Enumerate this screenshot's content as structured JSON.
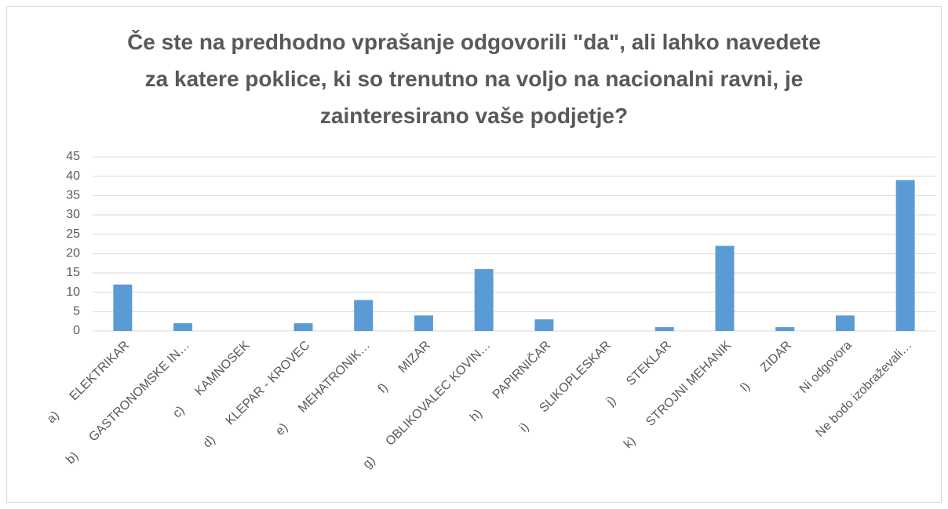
{
  "chart_data": {
    "type": "bar",
    "title": "Če ste na predhodno vprašanje odgovorili \"da\", ali lahko navedete za katere poklice, ki so trenutno na voljo na nacionalni ravni, je zainteresirano vaše podjetje?",
    "categories": [
      "a)      ELEKTRIKAR",
      "b)      GASTRONOMSKE IN…",
      "c)      KAMNOSEK",
      "d)      KLEPAR - KROVEC",
      "e)      MEHATRONIK…",
      "f)      MIZAR",
      "g)      OBLIKOVALEC KOVIN…",
      "h)      PAPIRNIČAR",
      "i)      SLIKOPLESKAR",
      "j)      STEKLAR",
      "k)      STROJNI MEHANIK",
      "l)      ZIDAR",
      "Ni odgovora",
      "Ne bodo izobraževali…"
    ],
    "values": [
      12,
      2,
      0,
      2,
      8,
      4,
      16,
      3,
      0,
      1,
      22,
      1,
      4,
      39
    ],
    "color": "#5b9bd5",
    "ylim": [
      0,
      45
    ],
    "yticks": [
      0,
      5,
      10,
      15,
      20,
      25,
      30,
      35,
      40,
      45
    ],
    "grid": true
  }
}
